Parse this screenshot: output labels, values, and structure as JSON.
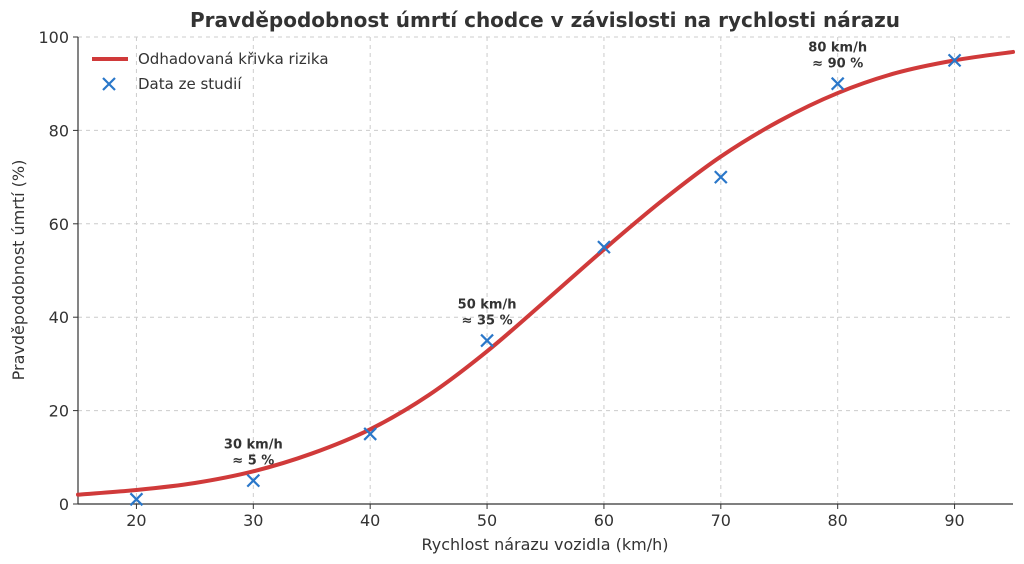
{
  "chart_data": {
    "type": "line",
    "title": "Pravděpodobnost úmrtí chodce v závislosti na rychlosti nárazu",
    "xlabel": "Rychlost nárazu vozidla (km/h)",
    "ylabel": "Pravděpodobnost úmrtí (%)",
    "xlim": [
      15,
      95
    ],
    "ylim": [
      0,
      100
    ],
    "xticks": [
      20,
      30,
      40,
      50,
      60,
      70,
      80,
      90
    ],
    "yticks": [
      0,
      20,
      40,
      60,
      80,
      100
    ],
    "grid": true,
    "legend_position": "top-left",
    "series": [
      {
        "name": "Odhadovaná křivka rizika",
        "kind": "line",
        "color": "#d03a3a",
        "x": [
          15,
          20,
          25,
          30,
          35,
          40,
          45,
          50,
          55,
          60,
          65,
          70,
          75,
          80,
          85,
          90,
          95
        ],
        "y": [
          2.0,
          3.0,
          4.5,
          7.0,
          10.8,
          16.0,
          23.3,
          32.7,
          43.5,
          54.5,
          65.0,
          74.4,
          82.0,
          88.0,
          92.3,
          95.0,
          96.8
        ]
      },
      {
        "name": "Data ze studií",
        "kind": "scatter",
        "marker": "x",
        "color": "#2a77c9",
        "x": [
          20,
          30,
          40,
          50,
          60,
          70,
          80,
          90
        ],
        "y": [
          1,
          5,
          15,
          35,
          55,
          70,
          90,
          95
        ]
      }
    ],
    "annotations": [
      {
        "x": 30,
        "y": 5,
        "line1": "30 km/h",
        "line2": "≈ 5 %"
      },
      {
        "x": 50,
        "y": 35,
        "line1": "50 km/h",
        "line2": "≈ 35 %"
      },
      {
        "x": 80,
        "y": 90,
        "line1": "80 km/h",
        "line2": "≈ 90 %"
      }
    ]
  }
}
